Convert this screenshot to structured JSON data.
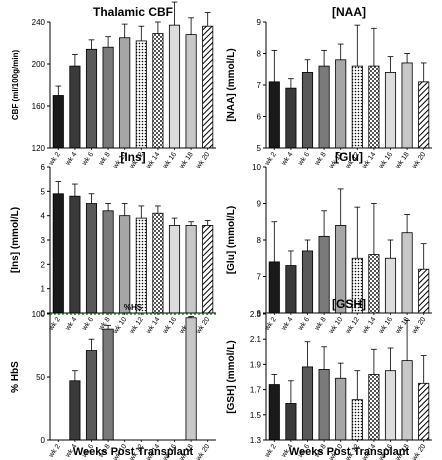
{
  "figure": {
    "common_xlabel": "Weeks Post Transplant"
  },
  "patterns": [
    "solid",
    "solid",
    "solid",
    "solid",
    "solid",
    "dots",
    "checker",
    "solid",
    "solid",
    "hatch"
  ],
  "fills": [
    "#1a1a1a",
    "#3a3a3a",
    "#595959",
    "#7a7a7a",
    "#a6a6a6",
    "#cfcfcf",
    "#ffffff",
    "#dcdcdc",
    "#c7c7c7",
    "#ffffff"
  ],
  "colors": {
    "axis": "#000000",
    "bar_stroke": "#000000",
    "reference_line": "#2e8b2e"
  },
  "chart_data": [
    {
      "type": "bar",
      "title": "Thalamic CBF",
      "ylabel": "CBF (ml/100g/min)",
      "categories": [
        "wk 2",
        "wk 4",
        "wk 6",
        "wk 8",
        "wk 10",
        "wk 12",
        "wk 14",
        "wk 16",
        "wk 18",
        "wk 20"
      ],
      "values": [
        170,
        198,
        214,
        216,
        225,
        222,
        229,
        237,
        228,
        236
      ],
      "errors": [
        9,
        11,
        9,
        10,
        13,
        14,
        11,
        22,
        16,
        13
      ],
      "ylim": [
        120,
        240
      ],
      "yticks": [
        120,
        160,
        200,
        240
      ],
      "ytick_labels": [
        "120",
        "160",
        "200",
        "240"
      ]
    },
    {
      "type": "bar",
      "title": "[NAA]",
      "ylabel": "[NAA] (mmol/L)",
      "categories": [
        "wk 2",
        "wk 4",
        "wk 6",
        "wk 8",
        "wk 10",
        "wk 12",
        "wk 14",
        "wk 16",
        "wk 18",
        "wk 20"
      ],
      "values": [
        7.1,
        6.9,
        7.4,
        7.6,
        7.8,
        7.6,
        7.6,
        7.4,
        7.7,
        7.1
      ],
      "errors": [
        1.0,
        0.3,
        0.4,
        0.5,
        0.5,
        1.3,
        1.2,
        0.5,
        0.3,
        0.6
      ],
      "ylim": [
        5,
        9
      ],
      "yticks": [
        5,
        6,
        7,
        8,
        9
      ],
      "ytick_labels": [
        "5",
        "6",
        "7",
        "8",
        "9"
      ]
    },
    {
      "type": "bar",
      "title": "[Ins]",
      "ylabel": "[Ins] (mmol/L)",
      "categories": [
        "wk 2",
        "wk 4",
        "wk 6",
        "wk 8",
        "wk 10",
        "wk 12",
        "wk 14",
        "wk 16",
        "wk 18",
        "wk 20"
      ],
      "values": [
        4.9,
        4.8,
        4.5,
        4.2,
        4.0,
        3.9,
        4.1,
        3.6,
        3.6,
        3.6
      ],
      "errors": [
        0.5,
        0.5,
        0.4,
        0.3,
        0.5,
        0.5,
        0.3,
        0.3,
        0.15,
        0.2
      ],
      "ylim": [
        0,
        6
      ],
      "yticks": [
        0,
        1,
        2,
        3,
        4,
        5,
        6
      ],
      "ytick_labels": [
        "0",
        "1",
        "2",
        "3",
        "4",
        "5",
        "6"
      ]
    },
    {
      "type": "bar",
      "title": "[Glu]",
      "ylabel": "[Glu] (mmol/L)",
      "categories": [
        "wk 2",
        "wk 4",
        "wk 6",
        "wk 8",
        "wk 10",
        "wk 12",
        "wk 14",
        "wk 16",
        "wk 18",
        "wk 20"
      ],
      "values": [
        7.4,
        7.3,
        7.7,
        8.1,
        8.4,
        7.5,
        7.6,
        7.5,
        8.2,
        7.2
      ],
      "errors": [
        1.1,
        0.4,
        0.3,
        0.7,
        1.0,
        1.4,
        1.4,
        0.5,
        0.5,
        0.7
      ],
      "ylim": [
        6,
        10
      ],
      "yticks": [
        6,
        7,
        8,
        9,
        10
      ],
      "ytick_labels": [
        "6",
        "7",
        "8",
        "9",
        "10"
      ]
    },
    {
      "type": "bar",
      "title": "",
      "annotation": "%HS",
      "reference_line": 100,
      "ylabel": "% HbS",
      "xlabel": "Weeks Post Transplant",
      "categories": [
        "wk 2",
        "wk 4",
        "wk 6",
        "wk 8",
        "wk 10",
        "wk 12",
        "wk 14",
        "wk 16",
        "wk 18",
        "wk 20"
      ],
      "values": [
        null,
        47,
        71,
        88,
        null,
        null,
        null,
        null,
        97,
        null
      ],
      "errors": [
        null,
        8,
        9,
        3,
        null,
        null,
        null,
        null,
        1,
        null
      ],
      "ylim": [
        0,
        100
      ],
      "yticks": [
        0,
        50,
        100
      ],
      "ytick_labels": [
        "0",
        "50",
        "100"
      ]
    },
    {
      "type": "bar",
      "title": "[GSH]",
      "ylabel": "[GSH] (mmol/L)",
      "xlabel": "Weeks Post Transplant",
      "categories": [
        "wk 2",
        "wk 4",
        "wk 6",
        "wk 8",
        "wk 10",
        "wk 12",
        "wk 14",
        "wk 16",
        "wk 18",
        "wk 20"
      ],
      "values": [
        1.74,
        1.59,
        1.88,
        1.86,
        1.79,
        1.62,
        1.82,
        1.85,
        1.93,
        1.75
      ],
      "errors": [
        0.08,
        0.18,
        0.2,
        0.18,
        0.12,
        0.23,
        0.2,
        0.18,
        0.32,
        0.22
      ],
      "ylim": [
        1.3,
        2.3
      ],
      "yticks": [
        1.3,
        1.5,
        1.7,
        1.9,
        2.1,
        2.3
      ],
      "ytick_labels": [
        "1.3",
        "1.5",
        "1.7",
        "1.9",
        "2.1",
        "2.3"
      ]
    }
  ]
}
